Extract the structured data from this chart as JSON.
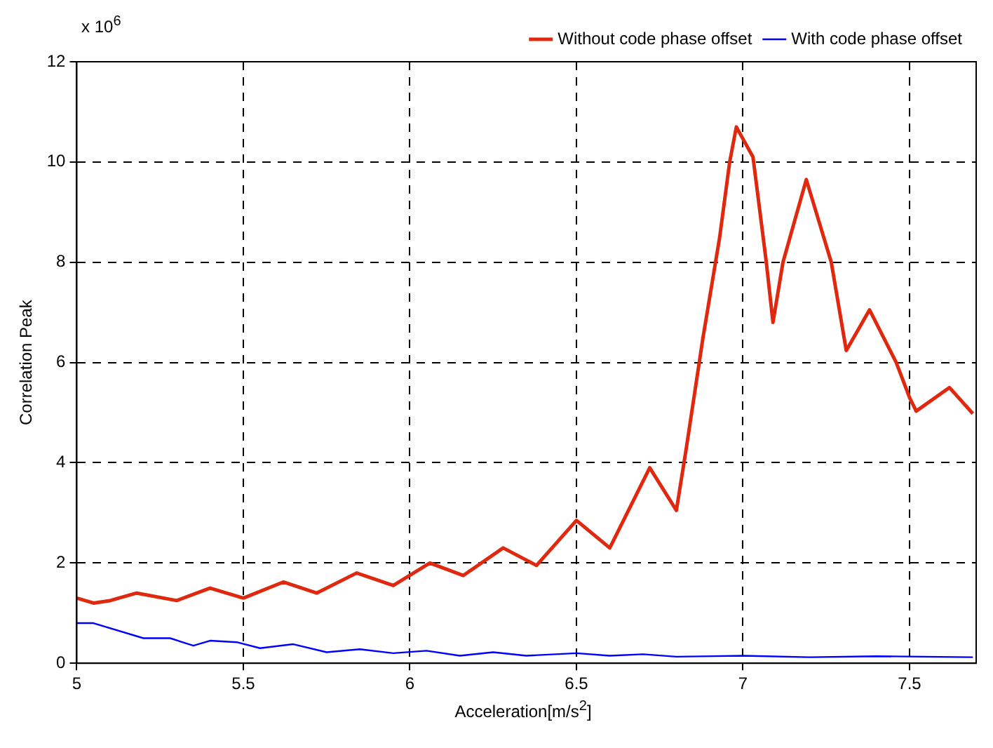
{
  "chart_data": {
    "type": "line",
    "xlabel": "Acceleration[m/s$^{2}$]",
    "ylabel": "Correlation Peak",
    "annotations": [
      "x 10$^{6}$"
    ],
    "xlim": [
      5,
      7.7
    ],
    "xticks": [
      5,
      5.5,
      6,
      6.5,
      7,
      7.5
    ],
    "ylim": [
      0,
      12
    ],
    "yticks": [
      0,
      2,
      4,
      6,
      8,
      10,
      12
    ],
    "grid": true,
    "legend": "top right",
    "marker": "none",
    "line_style": "solid",
    "series": [
      {
        "name": "Without code phase offset",
        "color": "#e0280e",
        "x": [
          5,
          5.05,
          5.1,
          5.18,
          5.3,
          5.4,
          5.5,
          5.62,
          5.72,
          5.84,
          5.95,
          6.06,
          6.16,
          6.28,
          6.38,
          6.5,
          6.6,
          6.72,
          6.8,
          6.83,
          6.88,
          6.93,
          6.96,
          6.98,
          7.03,
          7.07,
          7.09,
          7.12,
          7.19,
          7.265,
          7.31,
          7.38,
          7.46,
          7.5,
          7.52,
          7.62,
          7.69
        ],
        "values": [
          1.3,
          1.2,
          1.25,
          1.4,
          1.25,
          1.5,
          1.3,
          1.62,
          1.4,
          1.8,
          1.55,
          2.0,
          1.75,
          2.3,
          1.95,
          2.85,
          2.3,
          3.9,
          3.05,
          4.3,
          6.5,
          8.5,
          10.0,
          10.7,
          10.1,
          8.0,
          6.8,
          8.0,
          9.65,
          8.0,
          6.24,
          7.05,
          6.0,
          5.3,
          5.03,
          5.5,
          4.98
        ]
      },
      {
        "name": "With code phase offset",
        "color": "#0000ff",
        "x": [
          5,
          5.05,
          5.2,
          5.28,
          5.35,
          5.4,
          5.48,
          5.55,
          5.65,
          5.75,
          5.85,
          5.95,
          6.05,
          6.15,
          6.25,
          6.35,
          6.5,
          6.6,
          6.7,
          6.8,
          7,
          7.2,
          7.4,
          7.69
        ],
        "values": [
          0.8,
          0.8,
          0.5,
          0.5,
          0.35,
          0.45,
          0.42,
          0.3,
          0.38,
          0.22,
          0.28,
          0.2,
          0.25,
          0.15,
          0.22,
          0.15,
          0.2,
          0.15,
          0.18,
          0.13,
          0.15,
          0.12,
          0.14,
          0.12
        ]
      }
    ]
  }
}
